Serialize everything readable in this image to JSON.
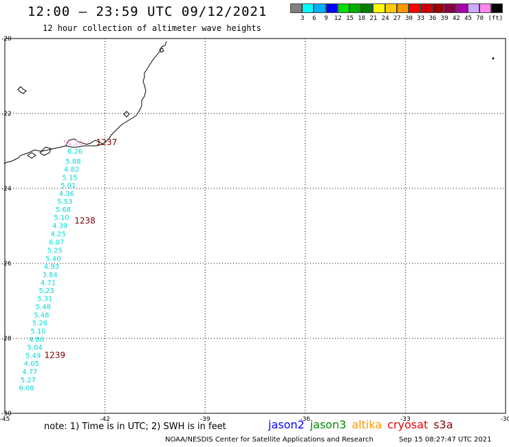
{
  "header": {
    "title": "12:00 — 23:59 UTC 09/12/2021",
    "subtitle": "12 hour collection of altimeter wave heights"
  },
  "legend": {
    "unit": "(ft)",
    "colors": [
      "#808080",
      "#00ffff",
      "#00b0ff",
      "#0000ff",
      "#00dd00",
      "#00b000",
      "#008000",
      "#ffff00",
      "#ffcc00",
      "#ff9900",
      "#ff0000",
      "#cc0000",
      "#990000",
      "#880044",
      "#aa00aa",
      "#ccaaff",
      "#ff88ee",
      "#000000"
    ],
    "labels": [
      "3",
      "6",
      "9",
      "12",
      "15",
      "18",
      "21",
      "24",
      "27",
      "30",
      "33",
      "36",
      "39",
      "42",
      "45",
      "70"
    ]
  },
  "axes": {
    "lon_ticks": [
      "-45",
      "-42",
      "-39",
      "-36",
      "-33",
      "-30"
    ],
    "lat_ticks": [
      "-20",
      "-22",
      "-24",
      "-26",
      "-28",
      "-30"
    ]
  },
  "measurements": [
    {
      "value": "51.20",
      "lon": -42.95,
      "lat": -22.77,
      "color": "pink"
    },
    {
      "value": "6.26",
      "lon": -42.9,
      "lat": -23.0
    },
    {
      "value": "5.88",
      "lon": -42.95,
      "lat": -23.27
    },
    {
      "value": "4.82",
      "lon": -43.0,
      "lat": -23.48
    },
    {
      "value": "5.15",
      "lon": -43.05,
      "lat": -23.7
    },
    {
      "value": "5.01",
      "lon": -43.1,
      "lat": -23.91
    },
    {
      "value": "4.36",
      "lon": -43.15,
      "lat": -24.13
    },
    {
      "value": "5.53",
      "lon": -43.2,
      "lat": -24.34
    },
    {
      "value": "5.68",
      "lon": -43.25,
      "lat": -24.55
    },
    {
      "value": "5.10",
      "lon": -43.3,
      "lat": -24.76
    },
    {
      "value": "4.39",
      "lon": -43.35,
      "lat": -24.98
    },
    {
      "value": "4.25",
      "lon": -43.4,
      "lat": -25.2
    },
    {
      "value": "6.07",
      "lon": -43.45,
      "lat": -25.42
    },
    {
      "value": "5.25",
      "lon": -43.5,
      "lat": -25.64
    },
    {
      "value": "5.40",
      "lon": -43.55,
      "lat": -25.86
    },
    {
      "value": "4.93",
      "lon": -43.6,
      "lat": -26.07
    },
    {
      "value": "3.84",
      "lon": -43.65,
      "lat": -26.29
    },
    {
      "value": "4.71",
      "lon": -43.7,
      "lat": -26.5
    },
    {
      "value": "5.23",
      "lon": -43.75,
      "lat": -26.72
    },
    {
      "value": "5.31",
      "lon": -43.8,
      "lat": -26.93
    },
    {
      "value": "5.48",
      "lon": -43.85,
      "lat": -27.15
    },
    {
      "value": "5.48",
      "lon": -43.9,
      "lat": -27.37
    },
    {
      "value": "5.26",
      "lon": -43.95,
      "lat": -27.58
    },
    {
      "value": "5.10",
      "lon": -44.0,
      "lat": -27.8
    },
    {
      "value": "4.86",
      "lon": -44.05,
      "lat": -28.02
    },
    {
      "value": "5.04",
      "lon": -44.1,
      "lat": -28.23
    },
    {
      "value": "5.49",
      "lon": -44.15,
      "lat": -28.45
    },
    {
      "value": "4.05",
      "lon": -44.2,
      "lat": -28.66
    },
    {
      "value": "4.77",
      "lon": -44.25,
      "lat": -28.88
    },
    {
      "value": "5.27",
      "lon": -44.3,
      "lat": -29.1
    },
    {
      "value": "6.08",
      "lon": -44.35,
      "lat": -29.31
    }
  ],
  "orbit_labels": [
    {
      "text": "1237",
      "lon": -41.95,
      "lat": -22.77
    },
    {
      "text": "1238",
      "lon": -42.6,
      "lat": -24.86
    },
    {
      "text": "1239",
      "lon": -43.5,
      "lat": -28.45
    }
  ],
  "footer": {
    "note": "note:  1) Time is in UTC;  2) SWH is in feet",
    "satellites": [
      {
        "name": "jason2",
        "color": "#0000ff"
      },
      {
        "name": "jason3",
        "color": "#008800"
      },
      {
        "name": "altika",
        "color": "#ff9900"
      },
      {
        "name": "cryosat",
        "color": "#ee0000"
      },
      {
        "name": "s3a",
        "color": "#880000"
      }
    ],
    "credit": "NOAA/NESDIS Center for Satellite Applications and Research",
    "timestamp": "Sep 15 08:27:47 UTC 2021"
  }
}
